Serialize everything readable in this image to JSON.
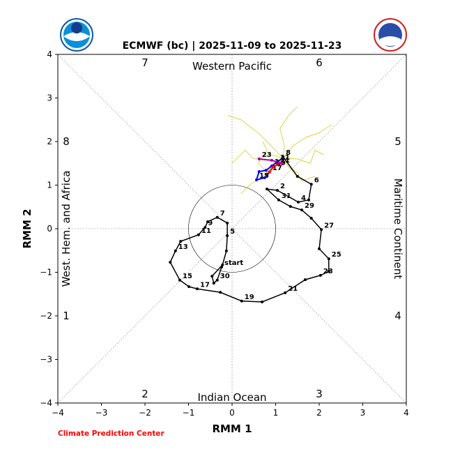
{
  "chart_data": {
    "type": "phase",
    "title": "ECMWF (bc) | 2025-11-09 to 2025-11-23",
    "xlabel": "RMM 1",
    "ylabel": "RMM 2",
    "credit": "Climate Prediction Center",
    "xlim": [
      -4,
      4
    ],
    "ylim": [
      -4,
      4
    ],
    "xticks": [
      {
        "value": -4,
        "label": "−4"
      },
      {
        "value": -3,
        "label": "−3"
      },
      {
        "value": -2,
        "label": "−2"
      },
      {
        "value": -1,
        "label": "−1"
      },
      0,
      1,
      2,
      3,
      4
    ],
    "yticks": [
      {
        "value": -4,
        "label": "−4"
      },
      {
        "value": -3,
        "label": "−3"
      },
      {
        "value": -2,
        "label": "−2"
      },
      {
        "value": -1,
        "label": "−1"
      },
      0,
      1,
      2,
      3,
      4
    ],
    "phase_labels": [
      "1",
      "2",
      "3",
      "4",
      "5",
      "6",
      "7",
      "8"
    ],
    "regions": [
      "Western Pacific",
      "Indian Ocean",
      "West. Hem. and Africa",
      "Maritime Continent"
    ],
    "ensemble": {
      "color": "#c8c800",
      "members": [
        {
          "x": [
            1.17,
            0.9,
            0.6,
            0.2,
            -0.1
          ],
          "y": [
            1.62,
            1.9,
            2.2,
            2.5,
            2.6
          ]
        },
        {
          "x": [
            1.17,
            1.4,
            1.7,
            2.0,
            2.3
          ],
          "y": [
            1.62,
            1.9,
            2.1,
            2.2,
            2.4
          ]
        },
        {
          "x": [
            1.17,
            1.0,
            0.7,
            0.4,
            0.2
          ],
          "y": [
            1.62,
            1.5,
            1.2,
            1.0,
            0.8
          ]
        },
        {
          "x": [
            1.17,
            1.3,
            1.5,
            1.6,
            1.9
          ],
          "y": [
            1.62,
            1.4,
            1.3,
            1.1,
            1.2
          ]
        },
        {
          "x": [
            1.17,
            0.9,
            0.5,
            0.3,
            0.0
          ],
          "y": [
            1.62,
            1.7,
            1.6,
            1.8,
            1.5
          ]
        },
        {
          "x": [
            1.17,
            1.2,
            1.1,
            1.3,
            1.5
          ],
          "y": [
            1.62,
            1.9,
            2.3,
            2.6,
            2.8
          ]
        },
        {
          "x": [
            1.17,
            0.8,
            0.6,
            0.8,
            0.7
          ],
          "y": [
            1.62,
            1.3,
            1.5,
            1.8,
            2.0
          ]
        },
        {
          "x": [
            1.17,
            1.5,
            1.8,
            1.9,
            2.1
          ],
          "y": [
            1.62,
            1.6,
            1.5,
            1.8,
            1.7
          ]
        }
      ]
    },
    "observed": {
      "color": "#000000",
      "x": [
        -0.24,
        -0.34,
        -0.42,
        -0.46,
        -0.22,
        -0.13,
        -0.11,
        -0.11,
        -0.34,
        -0.56,
        -0.62,
        -0.77,
        -1.18,
        -1.3,
        -1.42,
        -1.2,
        -0.99,
        -0.8,
        -0.27,
        0.22,
        0.69,
        1.22,
        1.68,
        2.03,
        2.22,
        2.22,
        2.0,
        2.05,
        1.82,
        1.6,
        1.34,
        1.07,
        0.8,
        1.04,
        1.52,
        1.76,
        1.82,
        1.5,
        1.17
      ],
      "y": [
        -0.88,
        -1.18,
        -1.25,
        -1.09,
        -0.83,
        -0.51,
        -0.16,
        0.13,
        0.26,
        0.16,
        0.03,
        -0.14,
        -0.29,
        -0.51,
        -0.77,
        -1.18,
        -1.33,
        -1.38,
        -1.46,
        -1.66,
        -1.68,
        -1.47,
        -1.17,
        -1.07,
        -0.98,
        -0.69,
        -0.46,
        -0.02,
        0.24,
        0.43,
        0.51,
        0.66,
        0.91,
        0.88,
        0.61,
        0.66,
        1.02,
        1.2,
        1.65
      ],
      "labels": [
        "start",
        "30",
        null,
        null,
        null,
        null,
        "5",
        null,
        "7",
        null,
        "9",
        "11",
        null,
        "13",
        null,
        "15",
        null,
        "17",
        null,
        "19",
        null,
        "21",
        null,
        "23",
        null,
        "25",
        null,
        "27",
        null,
        "29",
        null,
        "31",
        null,
        "2",
        "4",
        null,
        "6",
        null,
        "8"
      ]
    },
    "forecast": [
      {
        "color": "#0000ff",
        "x": [
          1.17,
          1.04,
          0.91,
          0.78,
          0.62,
          0.56,
          0.75,
          0.86
        ],
        "y": [
          1.62,
          1.54,
          1.44,
          1.34,
          1.31,
          1.12,
          1.17,
          1.3
        ],
        "labels": [
          null,
          "11",
          "13",
          null,
          null,
          "15",
          null,
          "17"
        ]
      },
      {
        "color": "#ff0000",
        "x": [
          0.86,
          0.94,
          1.04,
          1.14
        ],
        "y": [
          1.3,
          1.41,
          1.47,
          1.5
        ],
        "labels": [
          null,
          "19",
          "21",
          null
        ]
      },
      {
        "color": "#aa00aa",
        "x": [
          1.14,
          0.91,
          0.62
        ],
        "y": [
          1.5,
          1.57,
          1.6
        ],
        "labels": [
          null,
          null,
          "23"
        ]
      }
    ]
  }
}
